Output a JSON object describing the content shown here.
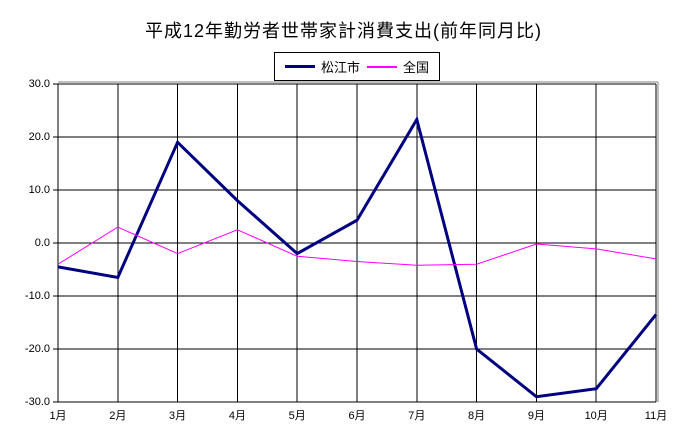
{
  "title": "平成12年勤労者世帯家計消費支出(前年同月比)",
  "legend": {
    "items": [
      {
        "label": "松江市",
        "color": "#000080"
      },
      {
        "label": "全国",
        "color": "#FF00FF"
      }
    ]
  },
  "chart_data": {
    "type": "line",
    "title": "平成12年勤労者世帯家計消費支出(前年同月比)",
    "categories": [
      "1月",
      "2月",
      "3月",
      "4月",
      "5月",
      "6月",
      "7月",
      "8月",
      "9月",
      "10月",
      "11月"
    ],
    "series": [
      {
        "name": "松江市",
        "color": "#000080",
        "stroke_width": 3,
        "values": [
          -4.5,
          -6.5,
          19.0,
          8.0,
          -2.0,
          4.3,
          23.3,
          -20.0,
          -29.0,
          -27.5,
          -13.5
        ]
      },
      {
        "name": "全国",
        "color": "#FF00FF",
        "stroke_width": 1,
        "values": [
          -4.0,
          3.0,
          -2.0,
          2.5,
          -2.5,
          -3.5,
          -4.2,
          -4.0,
          -0.2,
          -1.1,
          -3.0
        ]
      }
    ],
    "xlabel": "",
    "ylabel": "",
    "ylim": [
      -30,
      30
    ],
    "ytick_step": 10,
    "ytick_labels": [
      "30.0",
      "20.0",
      "10.0",
      "0.0",
      "-10.0",
      "-20.0",
      "-30.0"
    ],
    "grid": true,
    "legend_position": "top-center"
  },
  "colors": {
    "background": "#FFFFFF",
    "gridline": "#000000",
    "axis": "#000000",
    "plot_frame": "#808080",
    "text": "#000000"
  }
}
